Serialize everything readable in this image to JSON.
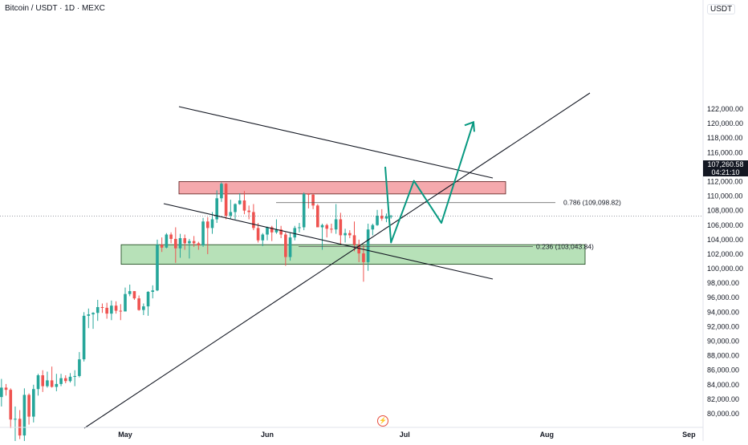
{
  "header": {
    "title": "Bitcoin / USDT · 1D · MEXC",
    "currency": "USDT"
  },
  "price_tag": {
    "price": "107,260.58",
    "countdown": "04:21:10"
  },
  "icon_badge": "lightning-icon",
  "colors": {
    "up": "#26a69a",
    "down": "#ef5350",
    "resistance_zone": "#f5a9ad",
    "support_zone": "#b7e1b8",
    "projection": "#089981",
    "trendline": "#131722"
  },
  "chart_data": {
    "type": "candlestick",
    "title": "Bitcoin / USDT · 1D · MEXC",
    "ylim": [
      79000,
      124000
    ],
    "y_ticks": [
      "80,000.00",
      "82,000.00",
      "84,000.00",
      "86,000.00",
      "88,000.00",
      "90,000.00",
      "92,000.00",
      "94,000.00",
      "96,000.00",
      "98,000.00",
      "100,000.00",
      "102,000.00",
      "104,000.00",
      "106,000.00",
      "108,000.00",
      "110,000.00",
      "112,000.00",
      "114,000.00",
      "116,000.00",
      "118,000.00",
      "120,000.00",
      "122,000.00"
    ],
    "x_labels": [
      "May",
      "Jun",
      "Jul",
      "Aug",
      "Sep"
    ],
    "last_price": 107260.58,
    "fib_levels": [
      {
        "label": "0.786 (109,098.82)",
        "value": 109098.82
      },
      {
        "label": "0.236 (103,043.84)",
        "value": 103043.84
      }
    ],
    "zones": [
      {
        "name": "resistance",
        "from": 110300,
        "to": 112000
      },
      {
        "name": "support",
        "from": 100600,
        "to": 103300
      }
    ],
    "projection_path": [
      {
        "date": "2025-06-28",
        "price": 103600
      },
      {
        "date": "2025-07-03",
        "price": 112100
      },
      {
        "date": "2025-07-09",
        "price": 106300
      },
      {
        "date": "2025-07-16",
        "price": 120200
      }
    ],
    "candles": [
      {
        "date": "2025-04-01",
        "o": 82500,
        "h": 83500,
        "l": 81000,
        "c": 82000
      },
      {
        "date": "2025-04-02",
        "o": 82000,
        "h": 83800,
        "l": 80500,
        "c": 83200
      },
      {
        "date": "2025-04-03",
        "o": 83200,
        "h": 84000,
        "l": 81800,
        "c": 82300
      },
      {
        "date": "2025-04-04",
        "o": 82300,
        "h": 84800,
        "l": 81000,
        "c": 83600
      },
      {
        "date": "2025-04-05",
        "o": 83600,
        "h": 84100,
        "l": 82500,
        "c": 83300
      },
      {
        "date": "2025-04-06",
        "o": 83300,
        "h": 83500,
        "l": 78000,
        "c": 79200
      },
      {
        "date": "2025-04-07",
        "o": 79200,
        "h": 81000,
        "l": 76000,
        "c": 79300
      },
      {
        "date": "2025-04-08",
        "o": 79300,
        "h": 80500,
        "l": 76500,
        "c": 77000
      },
      {
        "date": "2025-04-09",
        "o": 77000,
        "h": 83500,
        "l": 75000,
        "c": 82600
      },
      {
        "date": "2025-04-10",
        "o": 82600,
        "h": 82800,
        "l": 78500,
        "c": 79600
      },
      {
        "date": "2025-04-11",
        "o": 79600,
        "h": 84000,
        "l": 78800,
        "c": 83400
      },
      {
        "date": "2025-04-12",
        "o": 83400,
        "h": 85500,
        "l": 82500,
        "c": 85300
      },
      {
        "date": "2025-04-13",
        "o": 85300,
        "h": 86000,
        "l": 83000,
        "c": 83800
      },
      {
        "date": "2025-04-14",
        "o": 83800,
        "h": 85800,
        "l": 83600,
        "c": 84600
      },
      {
        "date": "2025-04-15",
        "o": 84600,
        "h": 86500,
        "l": 83600,
        "c": 83700
      },
      {
        "date": "2025-04-16",
        "o": 83700,
        "h": 85500,
        "l": 83100,
        "c": 84100
      },
      {
        "date": "2025-04-17",
        "o": 84100,
        "h": 85500,
        "l": 83800,
        "c": 84900
      },
      {
        "date": "2025-04-18",
        "o": 84900,
        "h": 85300,
        "l": 84200,
        "c": 84500
      },
      {
        "date": "2025-04-19",
        "o": 84500,
        "h": 85600,
        "l": 84300,
        "c": 85100
      },
      {
        "date": "2025-04-20",
        "o": 85100,
        "h": 86000,
        "l": 83800,
        "c": 85200
      },
      {
        "date": "2025-04-21",
        "o": 85200,
        "h": 88500,
        "l": 85000,
        "c": 87500
      },
      {
        "date": "2025-04-22",
        "o": 87500,
        "h": 94000,
        "l": 87200,
        "c": 93500
      },
      {
        "date": "2025-04-23",
        "o": 93500,
        "h": 94500,
        "l": 91800,
        "c": 93700
      },
      {
        "date": "2025-04-24",
        "o": 93700,
        "h": 94000,
        "l": 91700,
        "c": 93900
      },
      {
        "date": "2025-04-25",
        "o": 93900,
        "h": 95700,
        "l": 92800,
        "c": 94700
      },
      {
        "date": "2025-04-26",
        "o": 94700,
        "h": 95200,
        "l": 93900,
        "c": 94600
      },
      {
        "date": "2025-04-27",
        "o": 94600,
        "h": 95300,
        "l": 93100,
        "c": 93800
      },
      {
        "date": "2025-04-28",
        "o": 93800,
        "h": 95600,
        "l": 92900,
        "c": 94900
      },
      {
        "date": "2025-04-29",
        "o": 94900,
        "h": 95500,
        "l": 93800,
        "c": 94200
      },
      {
        "date": "2025-04-30",
        "o": 94200,
        "h": 95100,
        "l": 92900,
        "c": 94100
      },
      {
        "date": "2025-05-01",
        "o": 94100,
        "h": 97400,
        "l": 94100,
        "c": 96500
      },
      {
        "date": "2025-05-02",
        "o": 96500,
        "h": 97800,
        "l": 96200,
        "c": 96900
      },
      {
        "date": "2025-05-03",
        "o": 96900,
        "h": 96900,
        "l": 95700,
        "c": 95900
      },
      {
        "date": "2025-05-04",
        "o": 95900,
        "h": 96300,
        "l": 94200,
        "c": 94300
      },
      {
        "date": "2025-05-05",
        "o": 94300,
        "h": 95200,
        "l": 93600,
        "c": 94800
      },
      {
        "date": "2025-05-06",
        "o": 94800,
        "h": 96900,
        "l": 93500,
        "c": 96800
      },
      {
        "date": "2025-05-07",
        "o": 96800,
        "h": 97700,
        "l": 95900,
        "c": 97000
      },
      {
        "date": "2025-05-08",
        "o": 97000,
        "h": 104000,
        "l": 96900,
        "c": 103300
      },
      {
        "date": "2025-05-09",
        "o": 103300,
        "h": 104300,
        "l": 102300,
        "c": 102900
      },
      {
        "date": "2025-05-10",
        "o": 102900,
        "h": 104900,
        "l": 102800,
        "c": 104700
      },
      {
        "date": "2025-05-11",
        "o": 104700,
        "h": 105000,
        "l": 103500,
        "c": 104100
      },
      {
        "date": "2025-05-12",
        "o": 104100,
        "h": 105700,
        "l": 100800,
        "c": 102800
      },
      {
        "date": "2025-05-13",
        "o": 102800,
        "h": 104800,
        "l": 101500,
        "c": 104200
      },
      {
        "date": "2025-05-14",
        "o": 104200,
        "h": 104700,
        "l": 102600,
        "c": 103500
      },
      {
        "date": "2025-05-15",
        "o": 103500,
        "h": 104100,
        "l": 101400,
        "c": 103800
      },
      {
        "date": "2025-05-16",
        "o": 103800,
        "h": 104500,
        "l": 103000,
        "c": 103500
      },
      {
        "date": "2025-05-17",
        "o": 103500,
        "h": 103700,
        "l": 102600,
        "c": 103200
      },
      {
        "date": "2025-05-18",
        "o": 103200,
        "h": 107000,
        "l": 103000,
        "c": 106500
      },
      {
        "date": "2025-05-19",
        "o": 106500,
        "h": 107100,
        "l": 102000,
        "c": 105600
      },
      {
        "date": "2025-05-20",
        "o": 105600,
        "h": 107800,
        "l": 104800,
        "c": 106800
      },
      {
        "date": "2025-05-21",
        "o": 106800,
        "h": 110800,
        "l": 106300,
        "c": 109700
      },
      {
        "date": "2025-05-22",
        "o": 109700,
        "h": 111900,
        "l": 109200,
        "c": 111700
      },
      {
        "date": "2025-05-23",
        "o": 111700,
        "h": 111800,
        "l": 106800,
        "c": 107300
      },
      {
        "date": "2025-05-24",
        "o": 107300,
        "h": 109500,
        "l": 106900,
        "c": 107800
      },
      {
        "date": "2025-05-25",
        "o": 107800,
        "h": 109000,
        "l": 106800,
        "c": 108900
      },
      {
        "date": "2025-05-26",
        "o": 108900,
        "h": 110400,
        "l": 108800,
        "c": 109400
      },
      {
        "date": "2025-05-27",
        "o": 109400,
        "h": 110700,
        "l": 107500,
        "c": 108000
      },
      {
        "date": "2025-05-28",
        "o": 108000,
        "h": 108700,
        "l": 106800,
        "c": 107800
      },
      {
        "date": "2025-05-29",
        "o": 107800,
        "h": 108900,
        "l": 105300,
        "c": 105600
      },
      {
        "date": "2025-05-30",
        "o": 105600,
        "h": 106300,
        "l": 103600,
        "c": 103900
      },
      {
        "date": "2025-05-31",
        "o": 103900,
        "h": 104900,
        "l": 103100,
        "c": 104700
      },
      {
        "date": "2025-06-01",
        "o": 104700,
        "h": 105800,
        "l": 103900,
        "c": 105700
      },
      {
        "date": "2025-06-02",
        "o": 105700,
        "h": 105900,
        "l": 103800,
        "c": 105000
      },
      {
        "date": "2025-06-03",
        "o": 105000,
        "h": 106800,
        "l": 104800,
        "c": 105400
      },
      {
        "date": "2025-06-04",
        "o": 105400,
        "h": 105900,
        "l": 104200,
        "c": 104700
      },
      {
        "date": "2025-06-05",
        "o": 104700,
        "h": 105000,
        "l": 100400,
        "c": 101600
      },
      {
        "date": "2025-06-06",
        "o": 101600,
        "h": 105000,
        "l": 101100,
        "c": 104300
      },
      {
        "date": "2025-06-07",
        "o": 104300,
        "h": 105900,
        "l": 103900,
        "c": 105600
      },
      {
        "date": "2025-06-08",
        "o": 105600,
        "h": 106300,
        "l": 105000,
        "c": 105700
      },
      {
        "date": "2025-06-09",
        "o": 105700,
        "h": 110500,
        "l": 105300,
        "c": 110300
      },
      {
        "date": "2025-06-10",
        "o": 110300,
        "h": 110400,
        "l": 108300,
        "c": 110200
      },
      {
        "date": "2025-06-11",
        "o": 110200,
        "h": 110300,
        "l": 108200,
        "c": 108700
      },
      {
        "date": "2025-06-12",
        "o": 108700,
        "h": 108900,
        "l": 105700,
        "c": 105700
      },
      {
        "date": "2025-06-13",
        "o": 105700,
        "h": 106200,
        "l": 102600,
        "c": 106000
      },
      {
        "date": "2025-06-14",
        "o": 106000,
        "h": 106200,
        "l": 104300,
        "c": 105500
      },
      {
        "date": "2025-06-15",
        "o": 105500,
        "h": 106200,
        "l": 104900,
        "c": 105400
      },
      {
        "date": "2025-06-16",
        "o": 105400,
        "h": 108900,
        "l": 104800,
        "c": 106800
      },
      {
        "date": "2025-06-17",
        "o": 106800,
        "h": 107700,
        "l": 103400,
        "c": 104600
      },
      {
        "date": "2025-06-18",
        "o": 104600,
        "h": 105500,
        "l": 103600,
        "c": 104900
      },
      {
        "date": "2025-06-19",
        "o": 104900,
        "h": 105300,
        "l": 104200,
        "c": 104600
      },
      {
        "date": "2025-06-20",
        "o": 104600,
        "h": 106500,
        "l": 102400,
        "c": 103300
      },
      {
        "date": "2025-06-21",
        "o": 103300,
        "h": 104000,
        "l": 100900,
        "c": 102100
      },
      {
        "date": "2025-06-22",
        "o": 102100,
        "h": 103200,
        "l": 98200,
        "c": 100900
      },
      {
        "date": "2025-06-23",
        "o": 100900,
        "h": 106200,
        "l": 99700,
        "c": 105400
      },
      {
        "date": "2025-06-24",
        "o": 105400,
        "h": 106200,
        "l": 104600,
        "c": 106000
      },
      {
        "date": "2025-06-25",
        "o": 106000,
        "h": 108100,
        "l": 105900,
        "c": 107300
      },
      {
        "date": "2025-06-26",
        "o": 107300,
        "h": 108200,
        "l": 106600,
        "c": 106900
      },
      {
        "date": "2025-06-27",
        "o": 106900,
        "h": 107600,
        "l": 106400,
        "c": 107200
      },
      {
        "date": "2025-06-28",
        "o": 107200,
        "h": 107400,
        "l": 106900,
        "c": 107260.58
      }
    ]
  }
}
